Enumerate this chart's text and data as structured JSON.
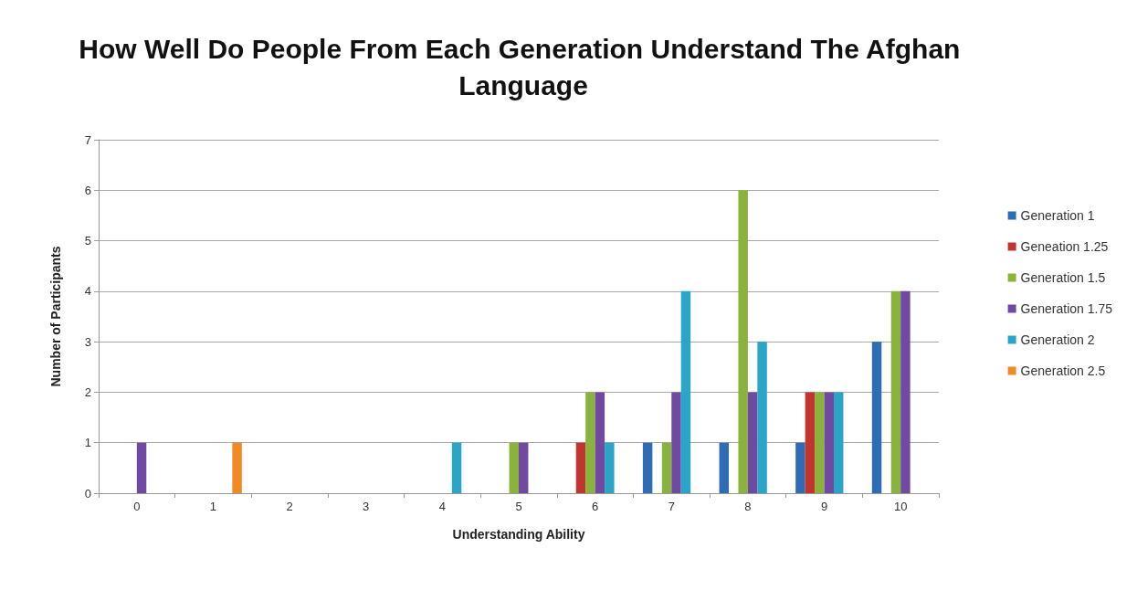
{
  "chart_data": {
    "type": "bar",
    "title": "How Well Do People From Each Generation Understand The Afghan Language",
    "xlabel": "Understanding Ability",
    "ylabel": "Number of Participants",
    "categories": [
      "0",
      "1",
      "2",
      "3",
      "4",
      "5",
      "6",
      "7",
      "8",
      "9",
      "10"
    ],
    "series": [
      {
        "name": "Generation 1",
        "color": "#2e6db4",
        "values": [
          0,
          0,
          0,
          0,
          0,
          0,
          0,
          1,
          1,
          1,
          3
        ]
      },
      {
        "name": "Geneation 1.25",
        "color": "#c0352f",
        "values": [
          0,
          0,
          0,
          0,
          0,
          0,
          1,
          0,
          0,
          2,
          0
        ]
      },
      {
        "name": "Generation 1.5",
        "color": "#8ab33e",
        "values": [
          0,
          0,
          0,
          0,
          0,
          1,
          2,
          1,
          6,
          2,
          4
        ]
      },
      {
        "name": "Generation 1.75",
        "color": "#6f4aa0",
        "values": [
          1,
          0,
          0,
          0,
          0,
          1,
          2,
          2,
          2,
          2,
          4
        ]
      },
      {
        "name": "Generation 2",
        "color": "#2aa5c5",
        "values": [
          0,
          0,
          0,
          0,
          1,
          0,
          1,
          4,
          3,
          2,
          0
        ]
      },
      {
        "name": "Generation 2.5",
        "color": "#f08a24",
        "values": [
          0,
          1,
          0,
          0,
          0,
          0,
          0,
          0,
          0,
          0,
          0
        ]
      }
    ],
    "ylim": [
      0,
      7
    ],
    "yticks": [
      0,
      1,
      2,
      3,
      4,
      5,
      6,
      7
    ],
    "grid": "y",
    "legend": "right"
  }
}
